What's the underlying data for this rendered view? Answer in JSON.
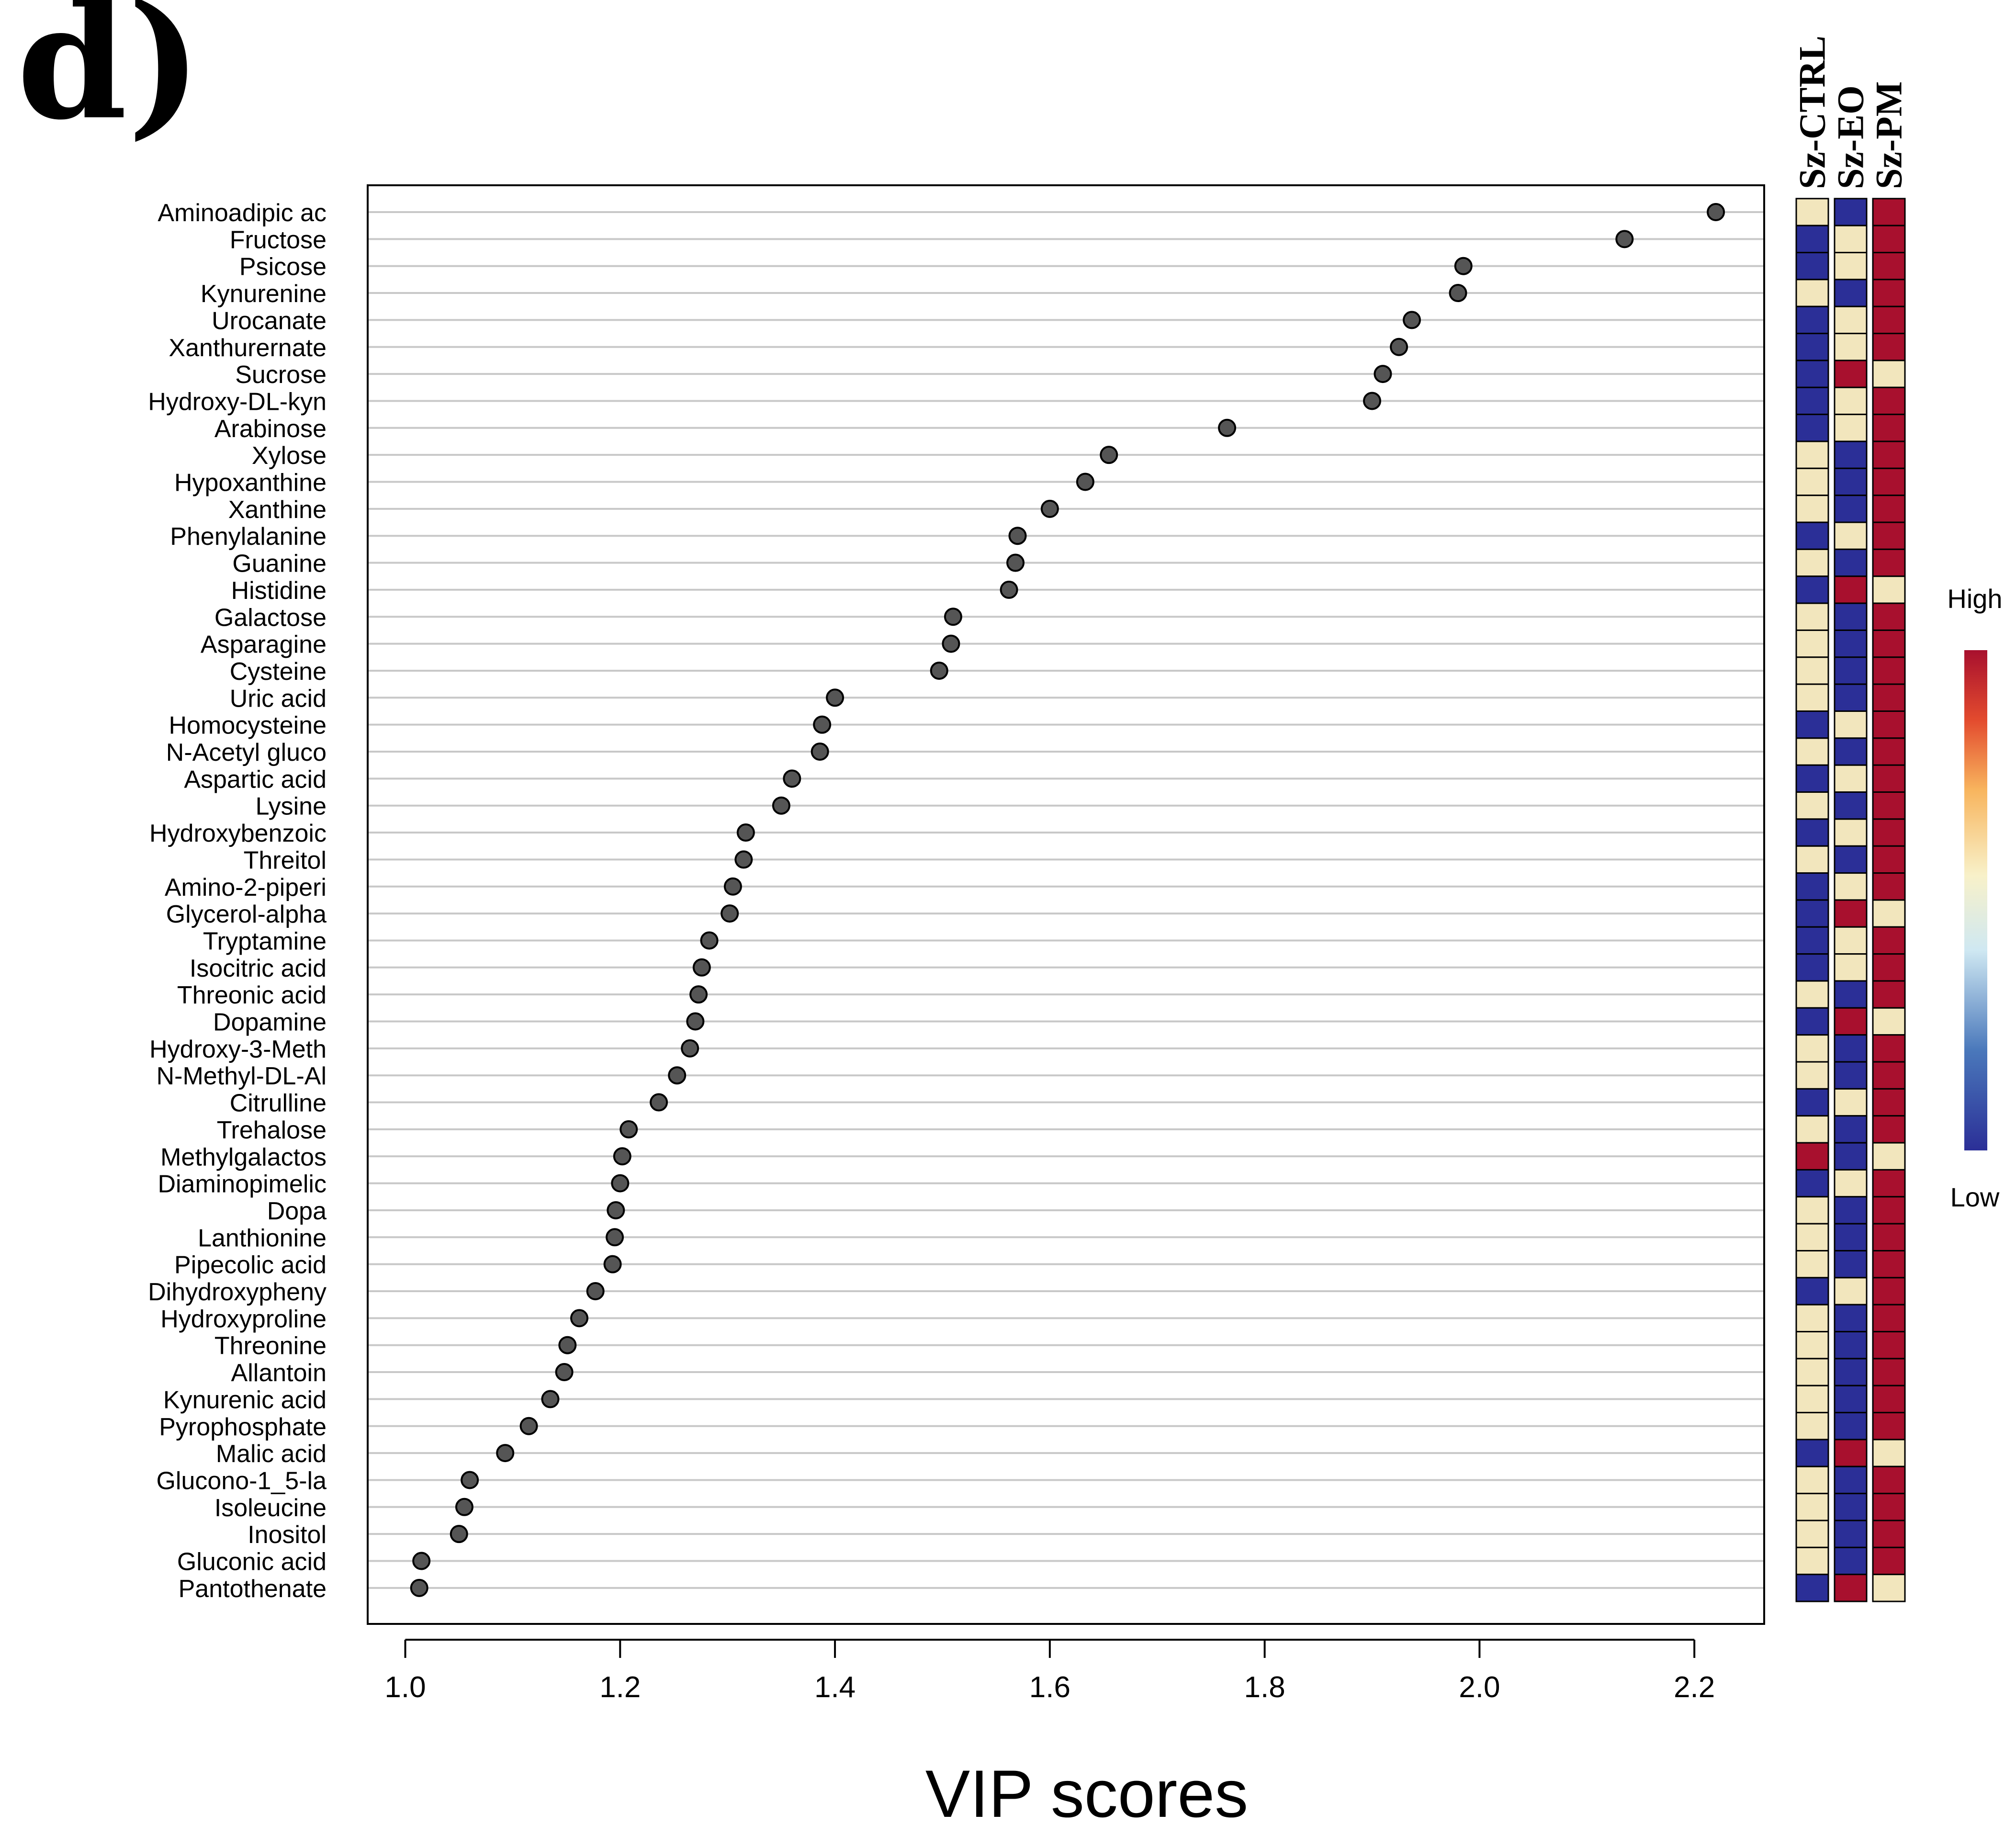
{
  "panel_label": "d)",
  "colors": {
    "low": "#2b2f97",
    "mid": "#f2e6bd",
    "high": "#a8102e",
    "point": "#555555",
    "grid": "#c8c8c8"
  },
  "chart_data": {
    "type": "scatter",
    "title": "",
    "xlabel": "VIP scores",
    "ylabel": "",
    "xlim": [
      0.965,
      2.265
    ],
    "xticks": [
      1.0,
      1.2,
      1.4,
      1.6,
      1.8,
      2.0,
      2.2
    ],
    "xtick_labels": [
      "1.0",
      "1.2",
      "1.4",
      "1.6",
      "1.8",
      "2.0",
      "2.2"
    ],
    "grid": true,
    "heatmap_groups": [
      "Sz-CTRL",
      "Sz-EO",
      "Sz-PM"
    ],
    "legend": {
      "title_high": "High",
      "title_low": "Low",
      "placement": "right"
    },
    "metabolites": [
      {
        "name": "Aminoadipic ac",
        "vip": 2.22,
        "heat": [
          "mid",
          "low",
          "high"
        ]
      },
      {
        "name": "Fructose",
        "vip": 2.135,
        "heat": [
          "low",
          "mid",
          "high"
        ]
      },
      {
        "name": "Psicose",
        "vip": 1.985,
        "heat": [
          "low",
          "mid",
          "high"
        ]
      },
      {
        "name": "Kynurenine",
        "vip": 1.98,
        "heat": [
          "mid",
          "low",
          "high"
        ]
      },
      {
        "name": "Urocanate",
        "vip": 1.937,
        "heat": [
          "low",
          "mid",
          "high"
        ]
      },
      {
        "name": "Xanthurernate",
        "vip": 1.925,
        "heat": [
          "low",
          "mid",
          "high"
        ]
      },
      {
        "name": "Sucrose",
        "vip": 1.91,
        "heat": [
          "low",
          "high",
          "mid"
        ]
      },
      {
        "name": "Hydroxy-DL-kyn",
        "vip": 1.9,
        "heat": [
          "low",
          "mid",
          "high"
        ]
      },
      {
        "name": "Arabinose",
        "vip": 1.765,
        "heat": [
          "low",
          "mid",
          "high"
        ]
      },
      {
        "name": "Xylose",
        "vip": 1.655,
        "heat": [
          "mid",
          "low",
          "high"
        ]
      },
      {
        "name": "Hypoxanthine",
        "vip": 1.633,
        "heat": [
          "mid",
          "low",
          "high"
        ]
      },
      {
        "name": "Xanthine",
        "vip": 1.6,
        "heat": [
          "mid",
          "low",
          "high"
        ]
      },
      {
        "name": "Phenylalanine",
        "vip": 1.57,
        "heat": [
          "low",
          "mid",
          "high"
        ]
      },
      {
        "name": "Guanine",
        "vip": 1.568,
        "heat": [
          "mid",
          "low",
          "high"
        ]
      },
      {
        "name": "Histidine",
        "vip": 1.562,
        "heat": [
          "low",
          "high",
          "mid"
        ]
      },
      {
        "name": "Galactose",
        "vip": 1.51,
        "heat": [
          "mid",
          "low",
          "high"
        ]
      },
      {
        "name": "Asparagine",
        "vip": 1.508,
        "heat": [
          "mid",
          "low",
          "high"
        ]
      },
      {
        "name": "Cysteine",
        "vip": 1.497,
        "heat": [
          "mid",
          "low",
          "high"
        ]
      },
      {
        "name": "Uric acid",
        "vip": 1.4,
        "heat": [
          "mid",
          "low",
          "high"
        ]
      },
      {
        "name": "Homocysteine",
        "vip": 1.388,
        "heat": [
          "low",
          "mid",
          "high"
        ]
      },
      {
        "name": "N-Acetyl gluco",
        "vip": 1.386,
        "heat": [
          "mid",
          "low",
          "high"
        ]
      },
      {
        "name": "Aspartic acid",
        "vip": 1.36,
        "heat": [
          "low",
          "mid",
          "high"
        ]
      },
      {
        "name": "Lysine",
        "vip": 1.35,
        "heat": [
          "mid",
          "low",
          "high"
        ]
      },
      {
        "name": "Hydroxybenzoic",
        "vip": 1.317,
        "heat": [
          "low",
          "mid",
          "high"
        ]
      },
      {
        "name": "Threitol",
        "vip": 1.315,
        "heat": [
          "mid",
          "low",
          "high"
        ]
      },
      {
        "name": "Amino-2-piperi",
        "vip": 1.305,
        "heat": [
          "low",
          "mid",
          "high"
        ]
      },
      {
        "name": "Glycerol-alpha",
        "vip": 1.302,
        "heat": [
          "low",
          "high",
          "mid"
        ]
      },
      {
        "name": "Tryptamine",
        "vip": 1.283,
        "heat": [
          "low",
          "mid",
          "high"
        ]
      },
      {
        "name": "Isocitric acid",
        "vip": 1.276,
        "heat": [
          "low",
          "mid",
          "high"
        ]
      },
      {
        "name": "Threonic acid",
        "vip": 1.273,
        "heat": [
          "mid",
          "low",
          "high"
        ]
      },
      {
        "name": "Dopamine",
        "vip": 1.27,
        "heat": [
          "low",
          "high",
          "mid"
        ]
      },
      {
        "name": "Hydroxy-3-Meth",
        "vip": 1.265,
        "heat": [
          "mid",
          "low",
          "high"
        ]
      },
      {
        "name": "N-Methyl-DL-Al",
        "vip": 1.253,
        "heat": [
          "mid",
          "low",
          "high"
        ]
      },
      {
        "name": "Citrulline",
        "vip": 1.236,
        "heat": [
          "low",
          "mid",
          "high"
        ]
      },
      {
        "name": "Trehalose",
        "vip": 1.208,
        "heat": [
          "mid",
          "low",
          "high"
        ]
      },
      {
        "name": "Methylgalactos",
        "vip": 1.202,
        "heat": [
          "high",
          "low",
          "mid"
        ]
      },
      {
        "name": "Diaminopimelic",
        "vip": 1.2,
        "heat": [
          "low",
          "mid",
          "high"
        ]
      },
      {
        "name": "Dopa",
        "vip": 1.196,
        "heat": [
          "mid",
          "low",
          "high"
        ]
      },
      {
        "name": "Lanthionine",
        "vip": 1.195,
        "heat": [
          "mid",
          "low",
          "high"
        ]
      },
      {
        "name": "Pipecolic acid",
        "vip": 1.193,
        "heat": [
          "mid",
          "low",
          "high"
        ]
      },
      {
        "name": "Dihydroxypheny",
        "vip": 1.177,
        "heat": [
          "low",
          "mid",
          "high"
        ]
      },
      {
        "name": "Hydroxyproline",
        "vip": 1.162,
        "heat": [
          "mid",
          "low",
          "high"
        ]
      },
      {
        "name": "Threonine",
        "vip": 1.151,
        "heat": [
          "mid",
          "low",
          "high"
        ]
      },
      {
        "name": "Allantoin",
        "vip": 1.148,
        "heat": [
          "mid",
          "low",
          "high"
        ]
      },
      {
        "name": "Kynurenic acid",
        "vip": 1.135,
        "heat": [
          "mid",
          "low",
          "high"
        ]
      },
      {
        "name": "Pyrophosphate",
        "vip": 1.115,
        "heat": [
          "mid",
          "low",
          "high"
        ]
      },
      {
        "name": "Malic acid",
        "vip": 1.093,
        "heat": [
          "low",
          "high",
          "mid"
        ]
      },
      {
        "name": "Glucono-1_5-la",
        "vip": 1.06,
        "heat": [
          "mid",
          "low",
          "high"
        ]
      },
      {
        "name": "Isoleucine",
        "vip": 1.055,
        "heat": [
          "mid",
          "low",
          "high"
        ]
      },
      {
        "name": "Inositol",
        "vip": 1.05,
        "heat": [
          "mid",
          "low",
          "high"
        ]
      },
      {
        "name": "Gluconic acid",
        "vip": 1.015,
        "heat": [
          "mid",
          "low",
          "high"
        ]
      },
      {
        "name": "Pantothenate",
        "vip": 1.013,
        "heat": [
          "low",
          "high",
          "mid"
        ]
      }
    ]
  }
}
